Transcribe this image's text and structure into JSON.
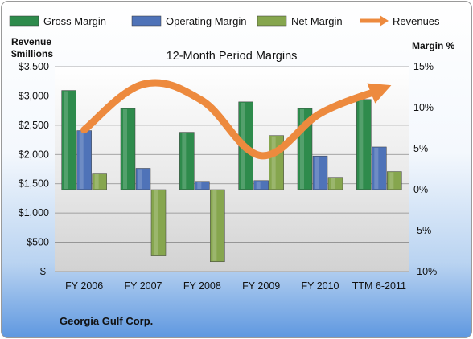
{
  "chart_data": {
    "type": "bar",
    "title": "12-Month Period Margins",
    "categories": [
      "FY 2006",
      "FY 2007",
      "FY 2008",
      "FY 2009",
      "FY 2010",
      "TTM 6-2011"
    ],
    "series": [
      {
        "name": "Gross Margin",
        "axis": "right",
        "unit": "%",
        "color": "#2e8b4c",
        "values": [
          12.1,
          9.9,
          7.0,
          10.7,
          9.9,
          11.0
        ]
      },
      {
        "name": "Operating Margin",
        "axis": "right",
        "unit": "%",
        "color": "#4f73b8",
        "values": [
          7.2,
          2.6,
          1.0,
          1.1,
          4.1,
          5.2
        ]
      },
      {
        "name": "Net Margin",
        "axis": "right",
        "unit": "%",
        "color": "#86a64e",
        "values": [
          2.0,
          -8.1,
          -8.8,
          6.6,
          1.5,
          2.2
        ]
      },
      {
        "name": "Revenues",
        "type": "line",
        "axis": "left",
        "unit": "$millions",
        "color": "#ed8a3e",
        "values": [
          2420,
          3200,
          2920,
          1980,
          2700,
          3100
        ]
      }
    ],
    "left_axis": {
      "title_line1": "Revenue",
      "title_line2": "$millions",
      "range": [
        0,
        3500
      ],
      "ticks": [
        "$-",
        "$500",
        "$1,000",
        "$1,500",
        "$2,000",
        "$2,500",
        "$3,000",
        "$3,500"
      ]
    },
    "right_axis": {
      "title": "Margin %",
      "range": [
        -10,
        15
      ],
      "ticks": [
        "-10%",
        "-5%",
        "0%",
        "5%",
        "10%",
        "15%"
      ]
    },
    "legend_position": "top",
    "grid": true,
    "footer": "Georgia Gulf Corp."
  }
}
